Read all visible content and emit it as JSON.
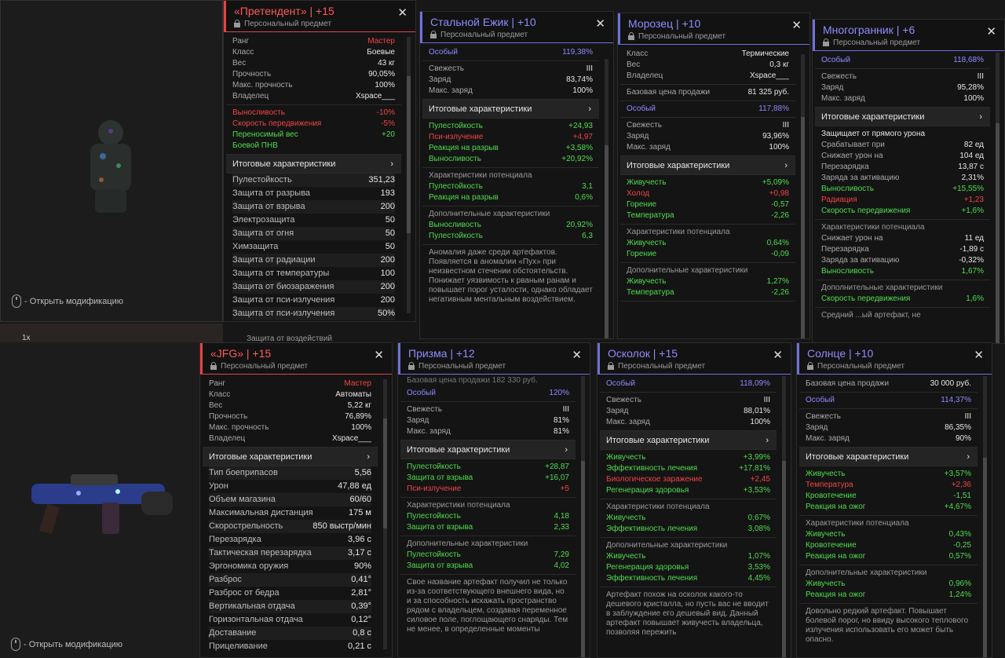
{
  "previews": [
    {
      "hint": "- Открыть модификацию"
    },
    {
      "hint": "- Открыть модификацию"
    }
  ],
  "fragments": {
    "a": "1x",
    "b": "Защита от воздействий"
  },
  "panels": [
    {
      "title": "«Претендент» | +15",
      "sub": "Персональный предмет",
      "sections": [
        {
          "rows": [
            {
              "l": "Ранг",
              "v": "Мастер",
              "c": "red"
            },
            {
              "l": "Класс",
              "v": "Боевые"
            },
            {
              "l": "Вес",
              "v": "43 кг"
            },
            {
              "l": "Прочность",
              "v": "90,05%"
            },
            {
              "l": "Макс. прочность",
              "v": "100%"
            },
            {
              "l": "Владелец",
              "v": "Xspace___"
            }
          ]
        },
        {
          "rows": [
            {
              "l": "Выносливость",
              "v": "-10%",
              "c": "neg"
            },
            {
              "l": "Скорость передвижения",
              "v": "-5%",
              "c": "neg"
            },
            {
              "l": "Переносимый вес",
              "v": "+20",
              "c": "pos"
            },
            {
              "l": "Боевой ПНВ",
              "v": "",
              "c": "pos"
            }
          ]
        }
      ],
      "bar": "Итоговые характеристики",
      "striped": [
        {
          "l": "Пулестойкость",
          "v": "351,23"
        },
        {
          "l": "Защита от разрыва",
          "v": "193"
        },
        {
          "l": "Защита от взрыва",
          "v": "200"
        },
        {
          "l": "Электрозащита",
          "v": "50"
        },
        {
          "l": "Защита от огня",
          "v": "50"
        },
        {
          "l": "Химзащита",
          "v": "50"
        },
        {
          "l": "Защита от радиации",
          "v": "200"
        },
        {
          "l": "Защита от температуры",
          "v": "100"
        },
        {
          "l": "Защита от биозаражения",
          "v": "200"
        },
        {
          "l": "Защита от пси-излучения",
          "v": "200"
        },
        {
          "l": "Защита от пси-излучения",
          "v": "50%"
        }
      ]
    },
    {
      "title": "Стальной Ежик | +10",
      "sub": "Персональный предмет",
      "sections": [
        {
          "rows": [
            {
              "l": "Особый",
              "v": "119,38%",
              "c": "blue"
            }
          ]
        },
        {
          "rows": [
            {
              "l": "Свежесть",
              "v": "III"
            },
            {
              "l": "Заряд",
              "v": "83,74%"
            },
            {
              "l": "Макс. заряд",
              "v": "100%"
            }
          ]
        }
      ],
      "bar": "Итоговые характеристики",
      "after": [
        {
          "rows": [
            {
              "l": "Пулестойкость",
              "v": "+24,93",
              "c": "pos"
            },
            {
              "l": "Пси-излучение",
              "v": "+4,97",
              "c": "neg"
            },
            {
              "l": "Реакция на разрыв",
              "v": "+3,58%",
              "c": "pos"
            },
            {
              "l": "Выносливость",
              "v": "+20,92%",
              "c": "pos"
            }
          ]
        },
        {
          "hd": "Характеристики потенциала",
          "rows": [
            {
              "l": "Пулестойкость",
              "v": "3,1",
              "c": "pos"
            },
            {
              "l": "Реакция на разрыв",
              "v": "0,6%",
              "c": "pos"
            }
          ]
        },
        {
          "hd": "Дополнительные характеристики",
          "rows": [
            {
              "l": "Выносливость",
              "v": "20,92%",
              "c": "pos"
            },
            {
              "l": "Пулестойкость",
              "v": "6,3",
              "c": "pos"
            }
          ]
        }
      ],
      "desc": "Аномалия даже среди артефактов. Появляется в аномалии «Пух» при неизвестном стечении обстоятельств. Понижает уязвимость к рваным ранам и повышает порог усталости, однако обладает негативным ментальным воздействием."
    },
    {
      "title": "Морозец | +10",
      "sub": "Персональный предмет",
      "sections": [
        {
          "rows": [
            {
              "l": "Класс",
              "v": "Термические"
            },
            {
              "l": "Вес",
              "v": "0,3 кг"
            },
            {
              "l": "Владелец",
              "v": "Xspace___"
            }
          ]
        },
        {
          "rows": [
            {
              "l": "Базовая цена продажи",
              "v": "81 325 руб."
            }
          ]
        },
        {
          "rows": [
            {
              "l": "Особый",
              "v": "117,88%",
              "c": "blue"
            }
          ]
        },
        {
          "rows": [
            {
              "l": "Свежесть",
              "v": "III"
            },
            {
              "l": "Заряд",
              "v": "93,96%"
            },
            {
              "l": "Макс. заряд",
              "v": "100%"
            }
          ]
        }
      ],
      "bar": "Итоговые характеристики",
      "after": [
        {
          "rows": [
            {
              "l": "Живучесть",
              "v": "+5,09%",
              "c": "pos"
            },
            {
              "l": "Холод",
              "v": "+0,98",
              "c": "neg"
            },
            {
              "l": "Горение",
              "v": "-0,57",
              "c": "pos"
            },
            {
              "l": "Температура",
              "v": "-2,26",
              "c": "pos"
            }
          ]
        },
        {
          "hd": "Характеристики потенциала",
          "rows": [
            {
              "l": "Живучесть",
              "v": "0,64%",
              "c": "pos"
            },
            {
              "l": "Горение",
              "v": "-0,09",
              "c": "pos"
            }
          ]
        },
        {
          "hd": "Дополнительные характеристики",
          "rows": [
            {
              "l": "Живучесть",
              "v": "1,27%",
              "c": "pos"
            },
            {
              "l": "Температура",
              "v": "-2,26",
              "c": "pos"
            }
          ]
        }
      ]
    },
    {
      "title": "Многогранник | +6",
      "sub": "Персональный предмет",
      "sections": [
        {
          "rows": [
            {
              "l": "Особый",
              "v": "118,68%",
              "c": "blue"
            }
          ]
        },
        {
          "rows": [
            {
              "l": "Свежесть",
              "v": "III"
            },
            {
              "l": "Заряд",
              "v": "95,28%"
            },
            {
              "l": "Макс. заряд",
              "v": "100%"
            }
          ]
        }
      ],
      "bar": "Итоговые характеристики",
      "after": [
        {
          "rows": [
            {
              "l": "Защищает от прямого урона",
              "v": "",
              "c": "white"
            },
            {
              "l": "Срабатывает при",
              "v": "82 ед"
            },
            {
              "l": "Снижает урон на",
              "v": "104 ед"
            },
            {
              "l": "Перезарядка",
              "v": "13,87 с"
            },
            {
              "l": "Заряда за активацию",
              "v": "2,31%"
            },
            {
              "l": "Выносливость",
              "v": "+15,55%",
              "c": "pos"
            },
            {
              "l": "Радиация",
              "v": "+1,23",
              "c": "neg"
            },
            {
              "l": "Скорость передвижения",
              "v": "+1,6%",
              "c": "pos"
            }
          ]
        },
        {
          "hd": "Характеристики потенциала",
          "rows": [
            {
              "l": "Снижает урон на",
              "v": "11 ед"
            },
            {
              "l": "Перезарядка",
              "v": "-1,89 с"
            },
            {
              "l": "Заряда за активацию",
              "v": "-0,32%"
            },
            {
              "l": "Выносливость",
              "v": "1,67%",
              "c": "pos"
            }
          ]
        },
        {
          "hd": "Дополнительные характеристики",
          "rows": [
            {
              "l": "Скорость передвижения",
              "v": "1,6%",
              "c": "pos"
            }
          ]
        }
      ],
      "desc": "Средний ...ый артефакт, не"
    },
    {
      "title": "«JFG» | +15",
      "sub": "Персональный предмет",
      "sections": [
        {
          "rows": [
            {
              "l": "Ранг",
              "v": "Мастер",
              "c": "red"
            },
            {
              "l": "Класс",
              "v": "Автоматы"
            },
            {
              "l": "Вес",
              "v": "5,22 кг"
            },
            {
              "l": "Прочность",
              "v": "76,89%"
            },
            {
              "l": "Макс. прочность",
              "v": "100%"
            },
            {
              "l": "Владелец",
              "v": "Xspace___"
            }
          ]
        }
      ],
      "bar": "Итоговые характеристики",
      "striped": [
        {
          "l": "Тип боеприпасов",
          "v": "5,56"
        },
        {
          "l": "Урон",
          "v": "47,88 ед"
        },
        {
          "l": "Объем магазина",
          "v": "60/60"
        },
        {
          "l": "Максимальная дистанция",
          "v": "175 м"
        },
        {
          "l": "Скорострельность",
          "v": "850 выстр/мин"
        },
        {
          "l": "Перезарядка",
          "v": "3,96 с"
        },
        {
          "l": "Тактическая перезарядка",
          "v": "3,17 с"
        },
        {
          "l": "Эргономика оружия",
          "v": "90%"
        },
        {
          "l": "Разброс",
          "v": "0,41°"
        },
        {
          "l": "Разброс от бедра",
          "v": "2,81°"
        },
        {
          "l": "Вертикальная отдача",
          "v": "0,39°"
        },
        {
          "l": "Горизонтальная отдача",
          "v": "0,12°"
        },
        {
          "l": "Доставание",
          "v": "0,8 с"
        },
        {
          "l": "Прицеливание",
          "v": "0,21 с"
        }
      ]
    },
    {
      "title": "Призма | +12",
      "sub": "Персональный предмет",
      "top": "Базовая цена продажи  182 330 руб.",
      "sections": [
        {
          "rows": [
            {
              "l": "Особый",
              "v": "120%",
              "c": "blue"
            }
          ]
        },
        {
          "rows": [
            {
              "l": "Свежесть",
              "v": "III"
            },
            {
              "l": "Заряд",
              "v": "81%"
            },
            {
              "l": "Макс. заряд",
              "v": "81%"
            }
          ]
        }
      ],
      "bar": "Итоговые характеристики",
      "after": [
        {
          "rows": [
            {
              "l": "Пулестойкость",
              "v": "+28,87",
              "c": "pos"
            },
            {
              "l": "Защита от взрыва",
              "v": "+16,07",
              "c": "pos"
            },
            {
              "l": "Пси-излучение",
              "v": "+5",
              "c": "neg"
            }
          ]
        },
        {
          "hd": "Характеристики потенциала",
          "rows": [
            {
              "l": "Пулестойкость",
              "v": "4,18",
              "c": "pos"
            },
            {
              "l": "Защита от взрыва",
              "v": "2,33",
              "c": "pos"
            }
          ]
        },
        {
          "hd": "Дополнительные характеристики",
          "rows": [
            {
              "l": "Пулестойкость",
              "v": "7,29",
              "c": "pos"
            },
            {
              "l": "Защита от взрыва",
              "v": "4,02",
              "c": "pos"
            }
          ]
        }
      ],
      "desc": "Свое название артефакт получил не только из-за соответствующего внешнего вида, но и за способность искажать пространство рядом с владельцем, создавая переменное силовое поле, поглощающего снаряды. Тем не менее, в определенные моменты"
    },
    {
      "title": "Осколок | +15",
      "sub": "Персональный предмет",
      "sections": [
        {
          "rows": [
            {
              "l": "Особый",
              "v": "118,09%",
              "c": "blue"
            }
          ]
        },
        {
          "rows": [
            {
              "l": "Свежесть",
              "v": "III"
            },
            {
              "l": "Заряд",
              "v": "88,01%"
            },
            {
              "l": "Макс. заряд",
              "v": "100%"
            }
          ]
        }
      ],
      "bar": "Итоговые характеристики",
      "after": [
        {
          "rows": [
            {
              "l": "Живучесть",
              "v": "+3,99%",
              "c": "pos"
            },
            {
              "l": "Эффективность лечения",
              "v": "+17,81%",
              "c": "pos"
            },
            {
              "l": "Биологическое заражение",
              "v": "+2,45",
              "c": "neg"
            },
            {
              "l": "Регенерация здоровья",
              "v": "+3,53%",
              "c": "pos"
            }
          ]
        },
        {
          "hd": "Характеристики потенциала",
          "rows": [
            {
              "l": "Живучесть",
              "v": "0,67%",
              "c": "pos"
            },
            {
              "l": "Эффективность лечения",
              "v": "3,08%",
              "c": "pos"
            }
          ]
        },
        {
          "hd": "Дополнительные характеристики",
          "rows": [
            {
              "l": "Живучесть",
              "v": "1,07%",
              "c": "pos"
            },
            {
              "l": "Регенерация здоровья",
              "v": "3,53%",
              "c": "pos"
            },
            {
              "l": "Эффективность лечения",
              "v": "4,45%",
              "c": "pos"
            }
          ]
        }
      ],
      "desc": "Артефакт похож на осколок какого-то дешевого кристалла, но пусть вас не вводит в заблуждение его дешевый вид. Данный артефакт повышает живучесть владельца, позволяя пережить"
    },
    {
      "title": "Солнце | +10",
      "sub": "Персональный предмет",
      "sections": [
        {
          "rows": [
            {
              "l": "Базовая цена продажи",
              "v": "30 000 руб."
            }
          ]
        },
        {
          "rows": [
            {
              "l": "Особый",
              "v": "114,37%",
              "c": "blue"
            }
          ]
        },
        {
          "rows": [
            {
              "l": "Свежесть",
              "v": "III"
            },
            {
              "l": "Заряд",
              "v": "86,35%"
            },
            {
              "l": "Макс. заряд",
              "v": "90%"
            }
          ]
        }
      ],
      "bar": "Итоговые характеристики",
      "after": [
        {
          "rows": [
            {
              "l": "Живучесть",
              "v": "+3,57%",
              "c": "pos"
            },
            {
              "l": "Температура",
              "v": "+2,36",
              "c": "neg"
            },
            {
              "l": "Кровотечение",
              "v": "-1,51",
              "c": "pos"
            },
            {
              "l": "Реакция на ожог",
              "v": "+4,67%",
              "c": "pos"
            }
          ]
        },
        {
          "hd": "Характеристики потенциала",
          "rows": [
            {
              "l": "Живучесть",
              "v": "0,43%",
              "c": "pos"
            },
            {
              "l": "Кровотечение",
              "v": "-0,25",
              "c": "pos"
            },
            {
              "l": "Реакция на ожог",
              "v": "0,57%",
              "c": "pos"
            }
          ]
        },
        {
          "hd": "Дополнительные характеристики",
          "rows": [
            {
              "l": "Живучесть",
              "v": "0,96%",
              "c": "pos"
            },
            {
              "l": "Реакция на ожог",
              "v": "1,24%",
              "c": "pos"
            }
          ]
        }
      ],
      "desc": "Довольно редкий артефакт. Повышает болевой порог, но ввиду высокого теплового излучения использовать его может быть опасно."
    }
  ]
}
